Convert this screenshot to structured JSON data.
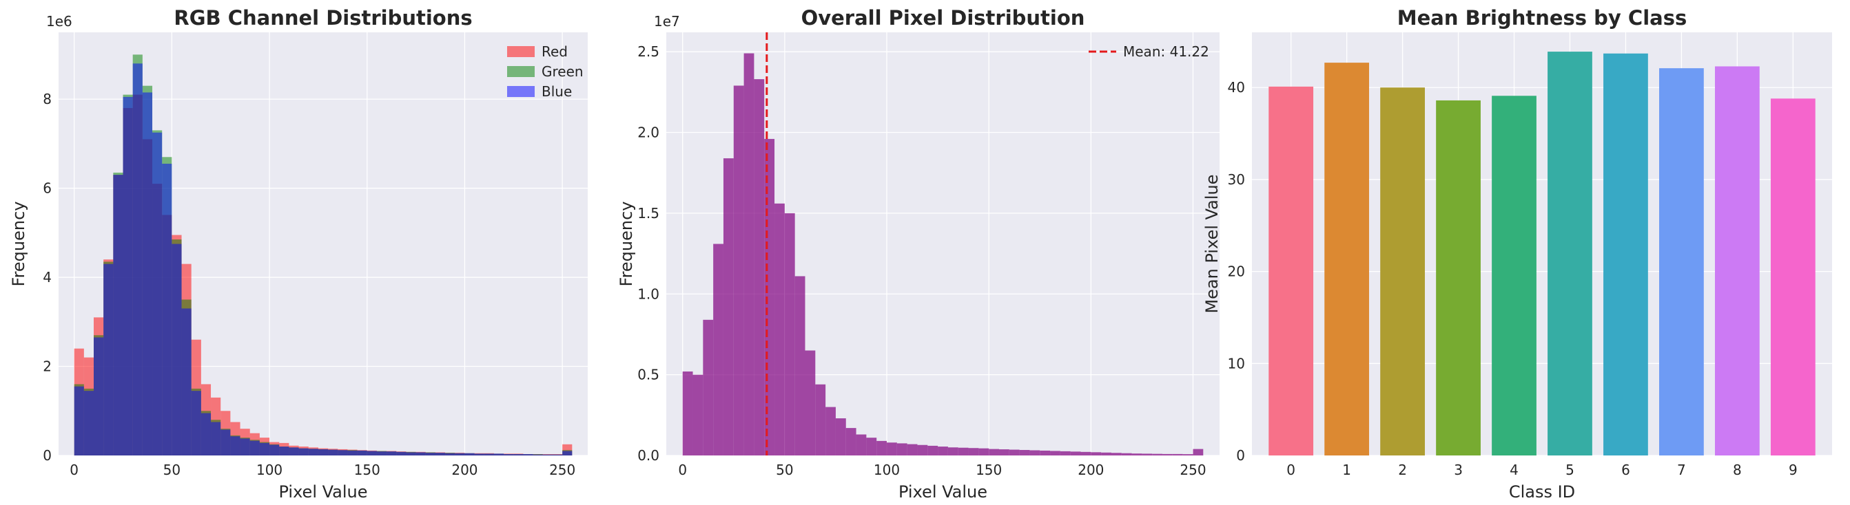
{
  "chart_data": [
    {
      "type": "histogram",
      "title": "RGB Channel Distributions",
      "xlabel": "Pixel Value",
      "ylabel": "Frequency",
      "y_offset_label": "1e6",
      "xlim": [
        -8,
        263
      ],
      "ylim": [
        0,
        9.5
      ],
      "xticks": [
        0,
        50,
        100,
        150,
        200,
        250
      ],
      "yticks": [
        0,
        2,
        4,
        6,
        8
      ],
      "bin_edges": [
        0,
        5,
        10,
        15,
        20,
        25,
        30,
        35,
        40,
        45,
        50,
        55,
        60,
        65,
        70,
        75,
        80,
        85,
        90,
        95,
        100,
        105,
        110,
        115,
        120,
        125,
        130,
        135,
        140,
        145,
        150,
        155,
        160,
        165,
        170,
        175,
        180,
        185,
        190,
        195,
        200,
        205,
        210,
        215,
        220,
        225,
        230,
        235,
        240,
        245,
        250,
        255
      ],
      "grid": true,
      "legend_position": "top-right",
      "series": [
        {
          "name": "Red",
          "color": "#ff0000",
          "values": [
            2.4,
            2.2,
            3.1,
            4.4,
            6.3,
            7.8,
            8.1,
            7.1,
            6.1,
            5.4,
            4.95,
            4.3,
            2.6,
            1.6,
            1.3,
            1.0,
            0.75,
            0.6,
            0.5,
            0.4,
            0.3,
            0.28,
            0.22,
            0.2,
            0.18,
            0.16,
            0.15,
            0.14,
            0.13,
            0.12,
            0.11,
            0.1,
            0.1,
            0.09,
            0.08,
            0.08,
            0.07,
            0.07,
            0.06,
            0.06,
            0.05,
            0.05,
            0.05,
            0.04,
            0.04,
            0.04,
            0.03,
            0.03,
            0.03,
            0.03,
            0.25
          ]
        },
        {
          "name": "Green",
          "color": "#008000",
          "values": [
            1.6,
            1.5,
            2.7,
            4.35,
            6.35,
            8.1,
            9.0,
            8.3,
            7.3,
            6.7,
            4.85,
            3.5,
            1.5,
            1.0,
            0.8,
            0.6,
            0.45,
            0.4,
            0.35,
            0.3,
            0.25,
            0.2,
            0.18,
            0.16,
            0.15,
            0.14,
            0.13,
            0.12,
            0.12,
            0.11,
            0.1,
            0.1,
            0.09,
            0.08,
            0.08,
            0.07,
            0.07,
            0.06,
            0.06,
            0.05,
            0.05,
            0.04,
            0.04,
            0.04,
            0.03,
            0.03,
            0.03,
            0.03,
            0.02,
            0.02,
            0.12
          ]
        },
        {
          "name": "Blue",
          "color": "#0000ff",
          "values": [
            1.55,
            1.45,
            2.65,
            4.3,
            6.3,
            8.05,
            8.8,
            8.15,
            7.25,
            6.55,
            4.75,
            3.3,
            1.45,
            0.95,
            0.75,
            0.58,
            0.43,
            0.38,
            0.33,
            0.28,
            0.24,
            0.2,
            0.18,
            0.16,
            0.15,
            0.14,
            0.13,
            0.12,
            0.11,
            0.11,
            0.1,
            0.09,
            0.09,
            0.08,
            0.07,
            0.07,
            0.06,
            0.06,
            0.05,
            0.05,
            0.05,
            0.04,
            0.04,
            0.04,
            0.03,
            0.03,
            0.03,
            0.02,
            0.02,
            0.02,
            0.1
          ]
        }
      ]
    },
    {
      "type": "histogram",
      "title": "Overall Pixel Distribution",
      "xlabel": "Pixel Value",
      "ylabel": "Frequency",
      "y_offset_label": "1e7",
      "xlim": [
        -8,
        263
      ],
      "ylim": [
        0,
        2.62
      ],
      "xticks": [
        0,
        50,
        100,
        150,
        200,
        250
      ],
      "yticks": [
        0.0,
        0.5,
        1.0,
        1.5,
        2.0,
        2.5
      ],
      "bin_edges": [
        0,
        5,
        10,
        15,
        20,
        25,
        30,
        35,
        40,
        45,
        50,
        55,
        60,
        65,
        70,
        75,
        80,
        85,
        90,
        95,
        100,
        105,
        110,
        115,
        120,
        125,
        130,
        135,
        140,
        145,
        150,
        155,
        160,
        165,
        170,
        175,
        180,
        185,
        190,
        195,
        200,
        205,
        210,
        215,
        220,
        225,
        230,
        235,
        240,
        245,
        250,
        255
      ],
      "values": [
        0.52,
        0.5,
        0.84,
        1.31,
        1.84,
        2.29,
        2.49,
        2.33,
        1.96,
        1.56,
        1.5,
        1.11,
        0.65,
        0.44,
        0.3,
        0.23,
        0.17,
        0.13,
        0.11,
        0.09,
        0.08,
        0.075,
        0.07,
        0.065,
        0.06,
        0.055,
        0.05,
        0.048,
        0.046,
        0.044,
        0.04,
        0.038,
        0.036,
        0.034,
        0.032,
        0.03,
        0.028,
        0.026,
        0.024,
        0.022,
        0.02,
        0.018,
        0.016,
        0.014,
        0.012,
        0.011,
        0.01,
        0.009,
        0.009,
        0.008,
        0.04
      ],
      "color": "#800080",
      "mean_line": {
        "value": 41.22,
        "label": "Mean: 41.22",
        "color": "#e41a1c"
      },
      "grid": true,
      "legend_position": "top-right"
    },
    {
      "type": "bar",
      "title": "Mean Brightness by Class",
      "xlabel": "Class ID",
      "ylabel": "Mean Pixel Value",
      "categories": [
        "0",
        "1",
        "2",
        "3",
        "4",
        "5",
        "6",
        "7",
        "8",
        "9"
      ],
      "values": [
        40.1,
        42.7,
        40.0,
        38.6,
        39.1,
        43.9,
        43.7,
        42.1,
        42.3,
        38.8
      ],
      "colors": [
        "#f77189",
        "#dc8932",
        "#ae9d31",
        "#77ab31",
        "#33b07a",
        "#36ada4",
        "#38a9c5",
        "#6e9bf4",
        "#cc7af4",
        "#f565cc"
      ],
      "ylim": [
        0,
        46
      ],
      "yticks": [
        0,
        10,
        20,
        30,
        40
      ],
      "grid": true
    }
  ]
}
